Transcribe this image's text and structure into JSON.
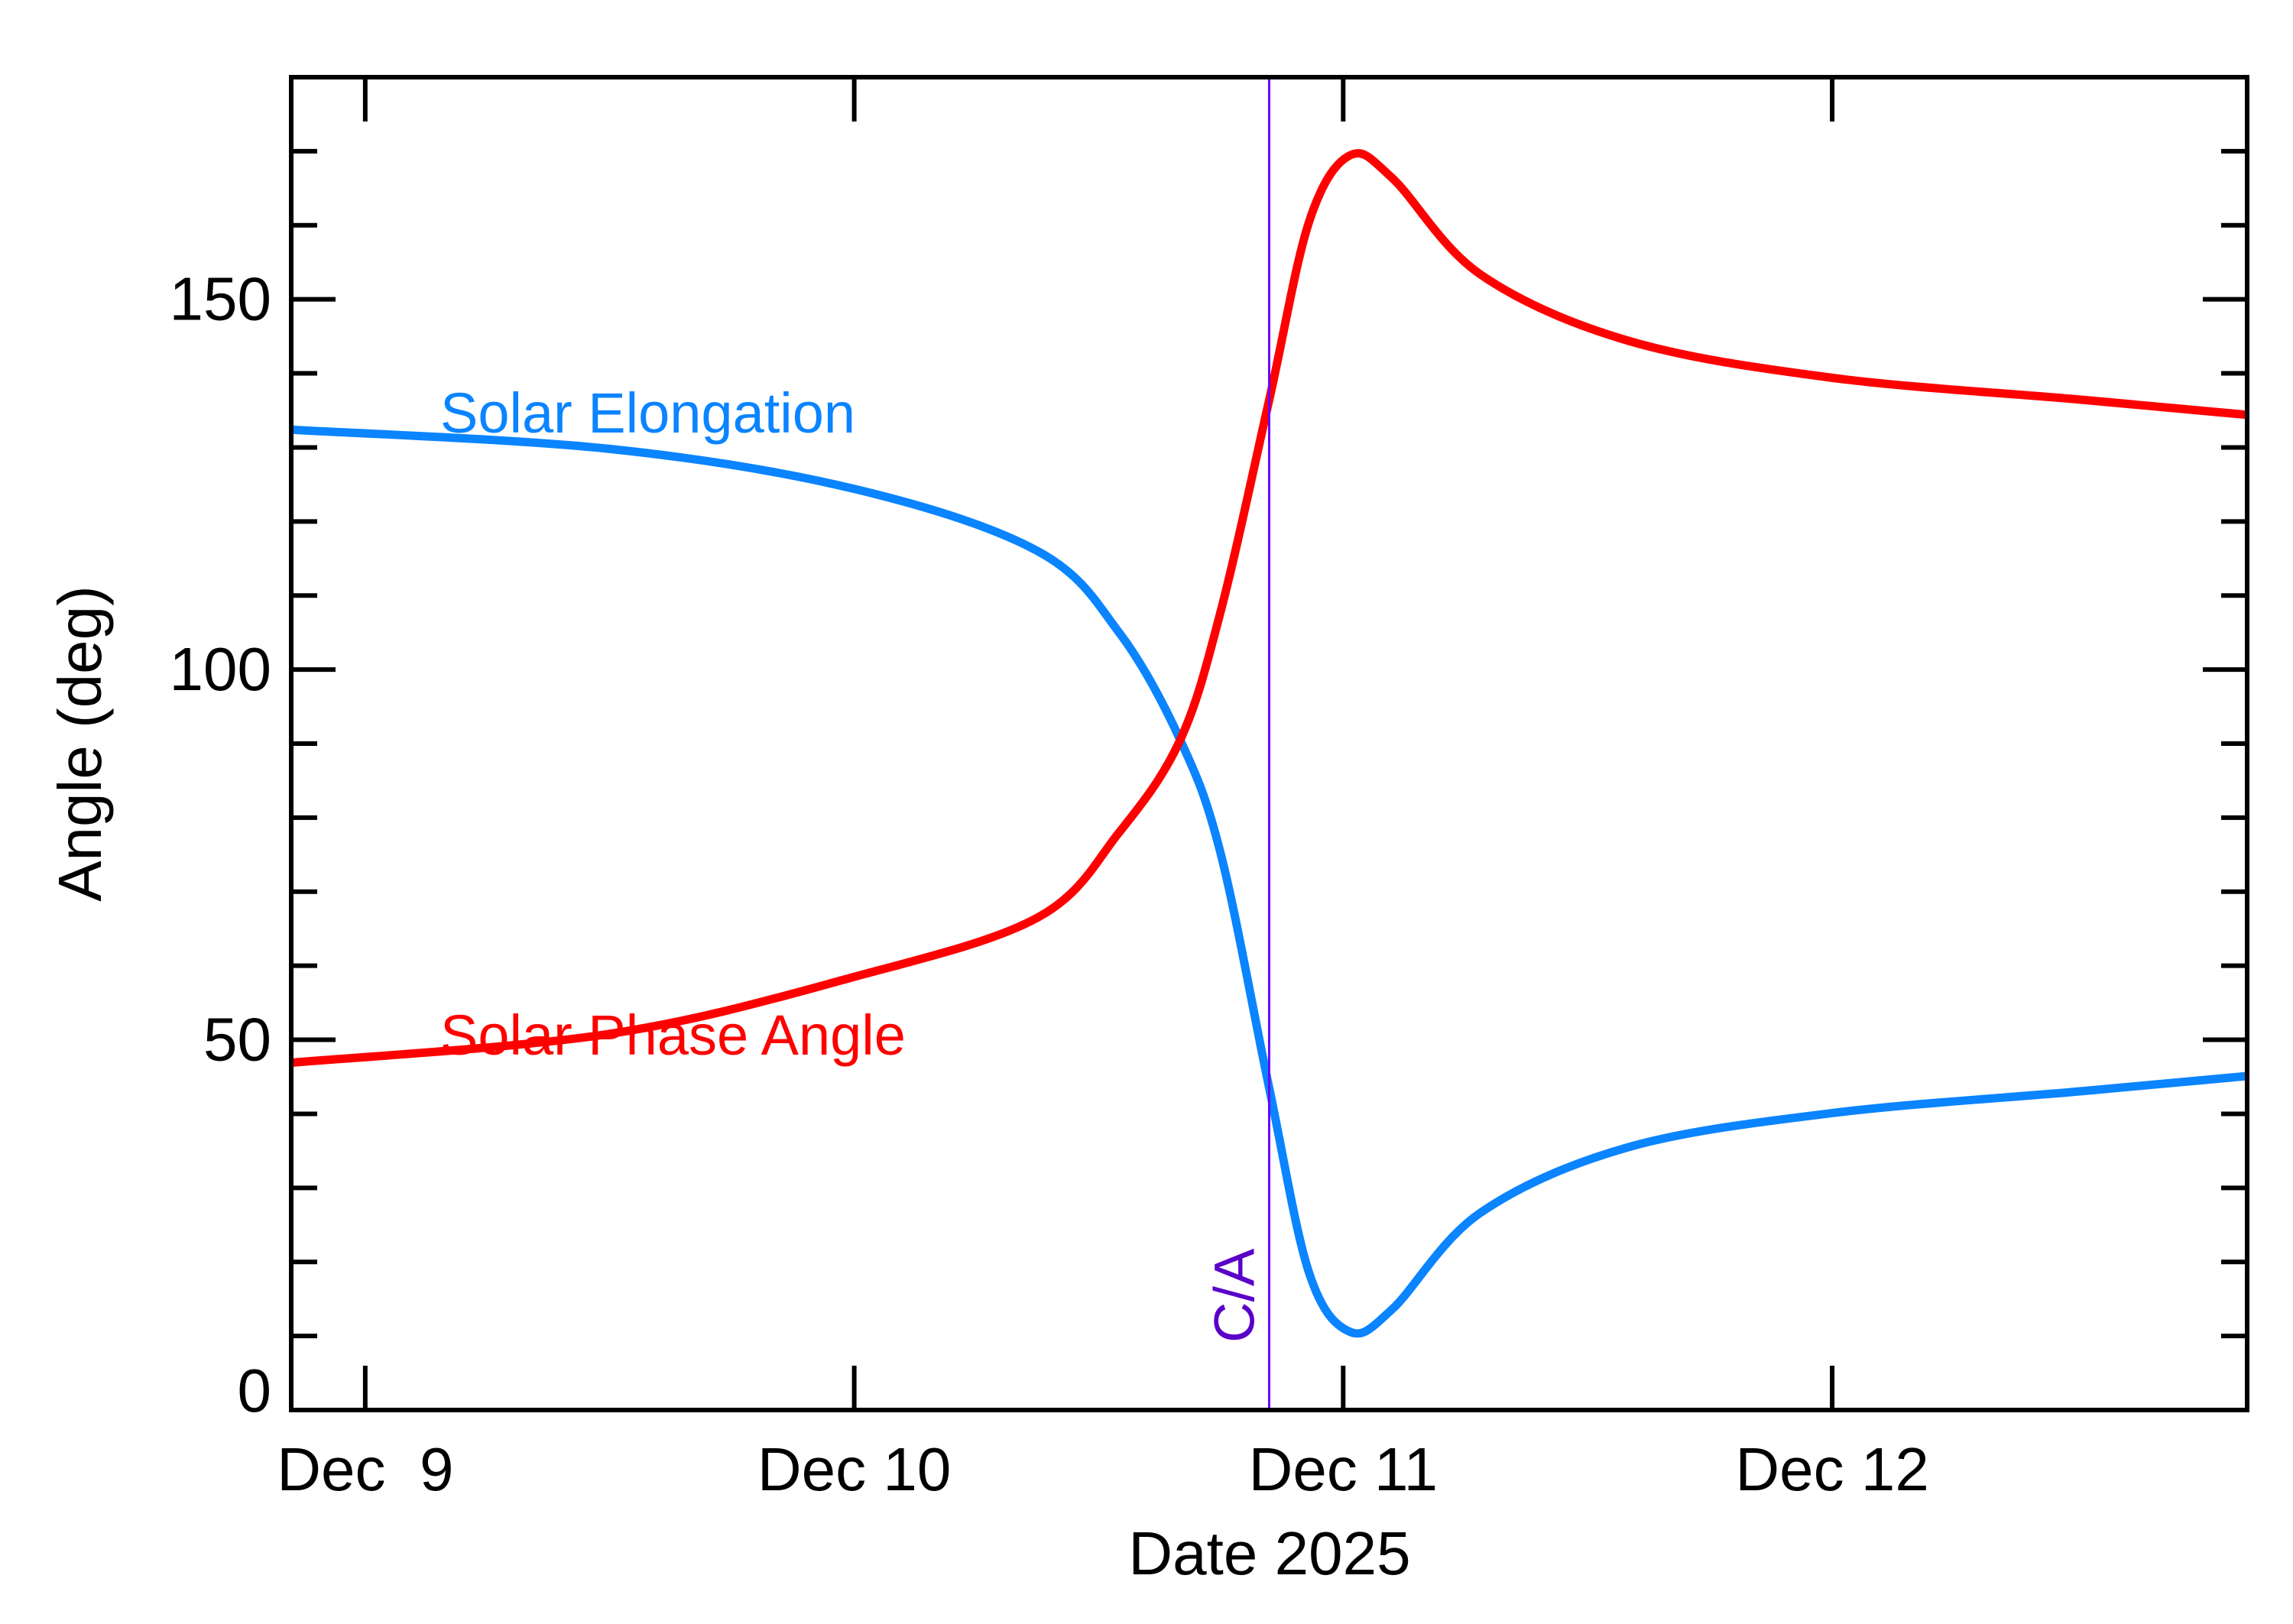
{
  "chart_data": {
    "type": "line",
    "xlabel": "Date 2025",
    "ylabel": "Angle (deg)",
    "xlim": [
      "2025-12-08T20:22",
      "2025-12-12T20:22"
    ],
    "ylim": [
      0,
      180
    ],
    "grid": false,
    "x_ticks": [
      {
        "value": "2025-12-09T00:00",
        "label": "Dec  9"
      },
      {
        "value": "2025-12-10T00:00",
        "label": "Dec 10"
      },
      {
        "value": "2025-12-11T00:00",
        "label": "Dec 11"
      },
      {
        "value": "2025-12-12T00:00",
        "label": "Dec 12"
      }
    ],
    "y_ticks": [
      {
        "value": 0,
        "label": "0"
      },
      {
        "value": 50,
        "label": "50"
      },
      {
        "value": 100,
        "label": "100"
      },
      {
        "value": 150,
        "label": "150"
      }
    ],
    "y_minor_step": 10,
    "closest_approach": {
      "x": "2025-12-10T20:22",
      "label": "C/A",
      "color": "#6a00ff",
      "label_color": "#5a00c8"
    },
    "x": [
      "2025-12-08T20:22",
      "2025-12-09T12:00",
      "2025-12-10T00:00",
      "2025-12-10T09:00",
      "2025-12-10T13:00",
      "2025-12-10T16:00",
      "2025-12-10T18:00",
      "2025-12-10T20:22",
      "2025-12-10T22:19",
      "2025-12-11T00:18",
      "2025-12-11T02:24",
      "2025-12-11T06:43",
      "2025-12-11T14:00",
      "2025-12-12T00:00",
      "2025-12-12T12:00",
      "2025-12-12T20:22"
    ],
    "series": [
      {
        "name": "Solar Elongation",
        "color": "#0a84ff",
        "values": [
          132.4,
          129.8,
          124.4,
          116.0,
          105.0,
          90.5,
          75.0,
          43.5,
          18.6,
          10.6,
          13.6,
          26.6,
          35.5,
          40.1,
          43.0,
          45.1
        ]
      },
      {
        "name": "Solar Phase Angle",
        "color": "#ff0000",
        "values": [
          46.9,
          50.8,
          58.5,
          66.5,
          78.0,
          90.5,
          108.0,
          136.4,
          160.4,
          169.4,
          166.4,
          153.4,
          144.4,
          139.4,
          136.5,
          134.4
        ]
      }
    ]
  }
}
